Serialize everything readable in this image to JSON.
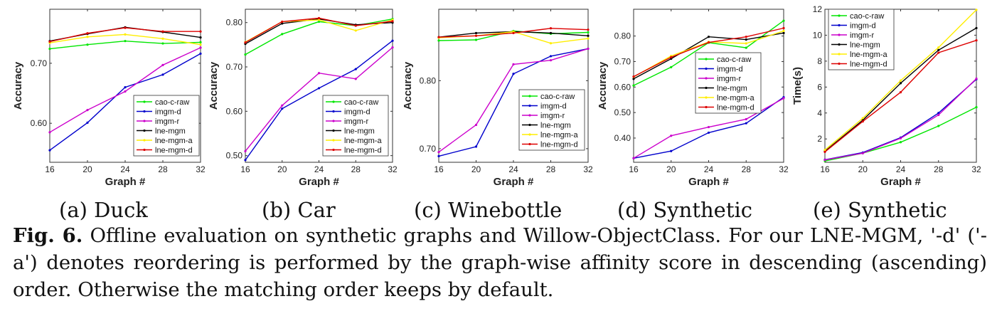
{
  "figure_label": "Fig. 6.",
  "caption_text": "Offline evaluation on synthetic graphs and Willow-ObjectClass. For our LNE-MGM, '-d' ('-a') denotes reordering is performed by the graph-wise affinity score in descending (ascending) order. Otherwise the matching order keeps by default.",
  "subcaptions": [
    "(a) Duck",
    "(b) Car",
    "(c) Winebottle",
    "(d) Synthetic",
    "(e) Synthetic"
  ],
  "colors": {
    "cao-c-raw": "#00e600",
    "imgm-d": "#0000cc",
    "imgm-r": "#cc00cc",
    "lne-mgm": "#000000",
    "lne-mgm-a": "#ffee00",
    "lne-mgm-d": "#dd0000"
  },
  "chart_data": [
    {
      "type": "line",
      "xlabel": "Graph #",
      "ylabel": "Accuracy",
      "x": [
        16,
        20,
        24,
        28,
        32
      ],
      "xticks": [
        "16",
        "20",
        "24",
        "28",
        "32"
      ],
      "ylim": [
        0.535,
        0.79
      ],
      "yticks": [
        0.6,
        0.7
      ],
      "ytick_labels": [
        "0.60",
        "0.70"
      ],
      "legend_position": "bottom-right",
      "series": [
        {
          "name": "cao-c-raw",
          "values": [
            0.724,
            0.731,
            0.737,
            0.733,
            0.735
          ]
        },
        {
          "name": "imgm-d",
          "values": [
            0.555,
            0.601,
            0.66,
            0.681,
            0.716
          ]
        },
        {
          "name": "imgm-r",
          "values": [
            0.585,
            0.622,
            0.653,
            0.697,
            0.726
          ]
        },
        {
          "name": "lne-mgm",
          "values": [
            0.737,
            0.749,
            0.76,
            0.752,
            0.743
          ]
        },
        {
          "name": "lne-mgm-a",
          "values": [
            0.734,
            0.744,
            0.748,
            0.741,
            0.731
          ]
        },
        {
          "name": "lne-mgm-d",
          "values": [
            0.736,
            0.75,
            0.759,
            0.753,
            0.753
          ]
        }
      ]
    },
    {
      "type": "line",
      "xlabel": "Graph #",
      "ylabel": "Accuracy",
      "x": [
        16,
        20,
        24,
        28,
        32
      ],
      "xticks": [
        "16",
        "20",
        "24",
        "28",
        "32"
      ],
      "ylim": [
        0.485,
        0.83
      ],
      "yticks": [
        0.5,
        0.6,
        0.7,
        0.8
      ],
      "ytick_labels": [
        "0.50",
        "0.60",
        "0.70",
        "0.80"
      ],
      "legend_position": "bottom-right",
      "series": [
        {
          "name": "cao-c-raw",
          "values": [
            0.728,
            0.774,
            0.802,
            0.793,
            0.808
          ]
        },
        {
          "name": "imgm-d",
          "values": [
            0.49,
            0.606,
            0.652,
            0.695,
            0.759
          ]
        },
        {
          "name": "imgm-r",
          "values": [
            0.51,
            0.613,
            0.686,
            0.673,
            0.744
          ]
        },
        {
          "name": "lne-mgm",
          "values": [
            0.752,
            0.798,
            0.808,
            0.795,
            0.8
          ]
        },
        {
          "name": "lne-mgm-a",
          "values": [
            0.756,
            0.802,
            0.806,
            0.782,
            0.806
          ]
        },
        {
          "name": "lne-mgm-d",
          "values": [
            0.755,
            0.802,
            0.81,
            0.793,
            0.803
          ]
        }
      ]
    },
    {
      "type": "line",
      "xlabel": "Graph #",
      "ylabel": "Accuracy",
      "x": [
        16,
        20,
        24,
        28,
        32
      ],
      "xticks": [
        "16",
        "20",
        "24",
        "28",
        "32"
      ],
      "ylim": [
        0.68,
        0.905
      ],
      "yticks": [
        0.7,
        0.8
      ],
      "ytick_labels": [
        "0.70",
        "0.80"
      ],
      "legend_position": "bottom-right",
      "series": [
        {
          "name": "cao-c-raw",
          "values": [
            0.859,
            0.86,
            0.873,
            0.869,
            0.871
          ]
        },
        {
          "name": "imgm-d",
          "values": [
            0.689,
            0.703,
            0.81,
            0.836,
            0.847
          ]
        },
        {
          "name": "imgm-r",
          "values": [
            0.695,
            0.735,
            0.824,
            0.83,
            0.847
          ]
        },
        {
          "name": "lne-mgm",
          "values": [
            0.864,
            0.87,
            0.872,
            0.87,
            0.866
          ]
        },
        {
          "name": "lne-mgm-a",
          "values": [
            0.863,
            0.866,
            0.872,
            0.855,
            0.862
          ]
        },
        {
          "name": "lne-mgm-d",
          "values": [
            0.864,
            0.866,
            0.87,
            0.877,
            0.875
          ]
        }
      ]
    },
    {
      "type": "line",
      "xlabel": "Graph #",
      "ylabel": "Accuracy",
      "x": [
        16,
        20,
        24,
        28,
        32
      ],
      "xticks": [
        "16",
        "20",
        "24",
        "28",
        "32"
      ],
      "ylim": [
        0.305,
        0.905
      ],
      "yticks": [
        0.4,
        0.5,
        0.6,
        0.7,
        0.8
      ],
      "ytick_labels": [
        "0.40",
        "0.50",
        "0.60",
        "0.70",
        "0.80"
      ],
      "legend_position": "center-right",
      "series": [
        {
          "name": "cao-c-raw",
          "values": [
            0.606,
            0.678,
            0.774,
            0.754,
            0.86
          ]
        },
        {
          "name": "imgm-d",
          "values": [
            0.321,
            0.349,
            0.421,
            0.458,
            0.56
          ]
        },
        {
          "name": "imgm-r",
          "values": [
            0.321,
            0.409,
            0.443,
            0.474,
            0.556
          ]
        },
        {
          "name": "lne-mgm",
          "values": [
            0.632,
            0.711,
            0.797,
            0.786,
            0.812
          ]
        },
        {
          "name": "lne-mgm-a",
          "values": [
            0.64,
            0.722,
            0.777,
            0.771,
            0.82
          ]
        },
        {
          "name": "lne-mgm-d",
          "values": [
            0.641,
            0.717,
            0.775,
            0.797,
            0.831
          ]
        }
      ]
    },
    {
      "type": "line",
      "xlabel": "Graph #",
      "ylabel": "Time(s)",
      "x": [
        16,
        20,
        24,
        28,
        32
      ],
      "xticks": [
        "16",
        "20",
        "24",
        "28",
        "32"
      ],
      "ylim": [
        0.2,
        12.0
      ],
      "yticks": [
        2,
        4,
        6,
        8,
        10,
        12
      ],
      "ytick_labels": [
        "2",
        "4",
        "6",
        "8",
        "10",
        "12"
      ],
      "legend_position": "top-left",
      "series": [
        {
          "name": "cao-c-raw",
          "values": [
            0.3,
            0.9,
            1.75,
            3.0,
            4.45
          ]
        },
        {
          "name": "imgm-d",
          "values": [
            0.4,
            0.95,
            2.1,
            4.0,
            6.6
          ]
        },
        {
          "name": "imgm-r",
          "values": [
            0.38,
            0.9,
            2.05,
            3.85,
            6.65
          ]
        },
        {
          "name": "lne-mgm",
          "values": [
            1.05,
            3.45,
            6.3,
            8.85,
            10.55
          ]
        },
        {
          "name": "lne-mgm-a",
          "values": [
            1.15,
            3.6,
            6.5,
            9.05,
            11.95
          ]
        },
        {
          "name": "lne-mgm-d",
          "values": [
            1.0,
            3.35,
            5.6,
            8.65,
            9.6
          ]
        }
      ]
    }
  ]
}
